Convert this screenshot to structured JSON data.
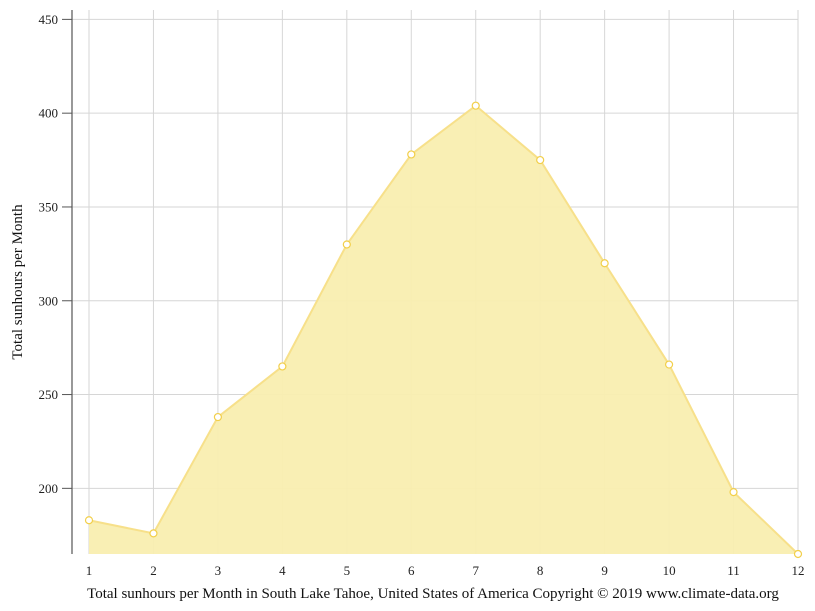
{
  "chart_data": {
    "type": "area",
    "x": [
      1,
      2,
      3,
      4,
      5,
      6,
      7,
      8,
      9,
      10,
      11,
      12
    ],
    "series": [
      {
        "values": [
          183,
          176,
          238,
          265,
          330,
          378,
          404,
          375,
          320,
          266,
          198,
          165
        ]
      }
    ],
    "xlabel": "Total sunhours per Month in South Lake Tahoe, United States of America Copyright © 2019 www.climate-data.org",
    "ylabel": "Total sunhours per Month",
    "x_ticks": [
      "1",
      "2",
      "3",
      "4",
      "5",
      "6",
      "7",
      "8",
      "9",
      "10",
      "11",
      "12"
    ],
    "y_ticks": [
      "200",
      "250",
      "300",
      "350",
      "400",
      "450"
    ],
    "xlim": [
      1,
      12
    ],
    "ylim": [
      165,
      455
    ],
    "grid": true,
    "legend": "none",
    "colors": {
      "fill": "#f9eeb0",
      "line": "#f7e08a",
      "marker_stroke": "#f2cf4a",
      "marker_fill": "#ffffff",
      "grid": "#d6d6d6",
      "axis": "#555555"
    }
  }
}
